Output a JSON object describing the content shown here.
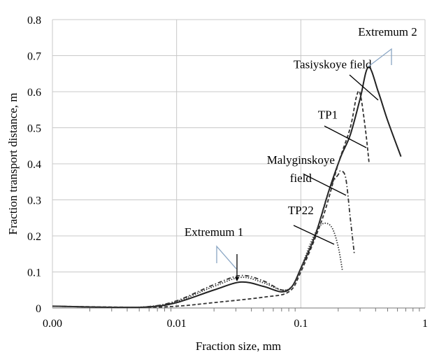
{
  "chart_data": {
    "type": "line",
    "xscale": "log",
    "xlabel": "Fraction size, mm",
    "ylabel": "Fraction transport distance, m",
    "xlim": [
      0.001,
      1
    ],
    "ylim": [
      0,
      0.8
    ],
    "grid": true,
    "x_tick_labels": [
      "0.00",
      "0.01",
      "0.1",
      "1"
    ],
    "x_ticks": [
      0.001,
      0.01,
      0.1,
      1
    ],
    "y_ticks": [
      0,
      0.1,
      0.2,
      0.3,
      0.4,
      0.5,
      0.6,
      0.7,
      0.8
    ],
    "y_tick_labels": [
      "0",
      "0.1",
      "0.2",
      "0.3",
      "0.4",
      "0.5",
      "0.6",
      "0.7",
      "0.8"
    ],
    "series": [
      {
        "name": "Tasiyskoye field",
        "style": "solid",
        "x": [
          0.001,
          0.003,
          0.006,
          0.01,
          0.02,
          0.033,
          0.05,
          0.07,
          0.085,
          0.1,
          0.13,
          0.17,
          0.21,
          0.25,
          0.3,
          0.35,
          0.42,
          0.5,
          0.64
        ],
        "y": [
          0.005,
          0.002,
          0.003,
          0.015,
          0.05,
          0.072,
          0.06,
          0.045,
          0.06,
          0.11,
          0.2,
          0.33,
          0.42,
          0.48,
          0.58,
          0.668,
          0.6,
          0.52,
          0.42
        ]
      },
      {
        "name": "TP1",
        "style": "dashed",
        "x": [
          0.001,
          0.005,
          0.01,
          0.02,
          0.05,
          0.08,
          0.1,
          0.15,
          0.2,
          0.25,
          0.28,
          0.3,
          0.33,
          0.355
        ],
        "y": [
          0.005,
          0.002,
          0.005,
          0.015,
          0.03,
          0.045,
          0.1,
          0.25,
          0.4,
          0.5,
          0.585,
          0.595,
          0.5,
          0.4
        ]
      },
      {
        "name": "Malyginskoye field",
        "style": "dashdot",
        "x": [
          0.001,
          0.003,
          0.006,
          0.01,
          0.02,
          0.033,
          0.05,
          0.07,
          0.085,
          0.1,
          0.13,
          0.17,
          0.2,
          0.21,
          0.23,
          0.25,
          0.27
        ],
        "y": [
          0.005,
          0.002,
          0.004,
          0.02,
          0.065,
          0.09,
          0.075,
          0.05,
          0.06,
          0.11,
          0.2,
          0.33,
          0.37,
          0.38,
          0.36,
          0.25,
          0.148
        ]
      },
      {
        "name": "TP22",
        "style": "dotted",
        "x": [
          0.001,
          0.003,
          0.006,
          0.01,
          0.02,
          0.033,
          0.05,
          0.07,
          0.085,
          0.1,
          0.12,
          0.14,
          0.16,
          0.18,
          0.2,
          0.216
        ],
        "y": [
          0.005,
          0.002,
          0.004,
          0.018,
          0.06,
          0.085,
          0.07,
          0.05,
          0.06,
          0.11,
          0.18,
          0.225,
          0.235,
          0.22,
          0.17,
          0.105
        ]
      }
    ],
    "annotations": [
      {
        "text": "Extremum 2",
        "x": 0.5,
        "y": 0.755
      },
      {
        "text": "Tasiyskoye field",
        "x": 0.18,
        "y": 0.665
      },
      {
        "text": "TP1",
        "x": 0.165,
        "y": 0.525
      },
      {
        "text": "Malyginskoye",
        "x": 0.1,
        "y": 0.4
      },
      {
        "text": "field",
        "x": 0.1,
        "y": 0.35
      },
      {
        "text": "TP22",
        "x": 0.1,
        "y": 0.26
      },
      {
        "text": "Extremum 1",
        "x": 0.02,
        "y": 0.2
      }
    ]
  }
}
